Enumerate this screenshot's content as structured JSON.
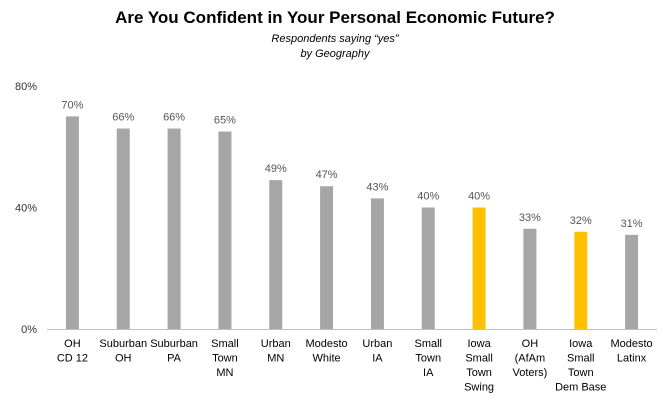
{
  "chart_data": {
    "type": "bar",
    "title": "Are You Confident in Your Personal Economic Future?",
    "subtitle_lines": [
      "Respondents saying “yes”",
      "by Geography"
    ],
    "ylim": [
      0,
      80
    ],
    "yticks": [
      "0%",
      "40%",
      "80%"
    ],
    "ytick_values": [
      0,
      40,
      80
    ],
    "grid": false,
    "categories": [
      [
        "OH",
        "CD 12"
      ],
      [
        "Suburban",
        "OH"
      ],
      [
        "Suburban",
        "PA"
      ],
      [
        "Small",
        "Town",
        "MN"
      ],
      [
        "Urban",
        "MN"
      ],
      [
        "Modesto",
        "White"
      ],
      [
        "Urban",
        "IA"
      ],
      [
        "Small",
        "Town",
        "IA"
      ],
      [
        "Iowa",
        "Small",
        "Town",
        "Swing"
      ],
      [
        "OH",
        "(AfAm",
        "Voters)"
      ],
      [
        "Iowa",
        "Small",
        "Town",
        "Dem Base"
      ],
      [
        "Modesto",
        "Latinx"
      ]
    ],
    "values": [
      70,
      66,
      66,
      65,
      49,
      47,
      43,
      40,
      40,
      33,
      32,
      31
    ],
    "value_labels": [
      "70%",
      "66%",
      "66%",
      "65%",
      "49%",
      "47%",
      "43%",
      "40%",
      "40%",
      "33%",
      "32%",
      "31%"
    ],
    "highlighted": [
      false,
      false,
      false,
      false,
      false,
      false,
      false,
      false,
      true,
      false,
      true,
      false
    ],
    "colors": {
      "bar": "#a6a6a6",
      "highlight": "#ffc000",
      "axis": "#bfbfbf"
    }
  }
}
